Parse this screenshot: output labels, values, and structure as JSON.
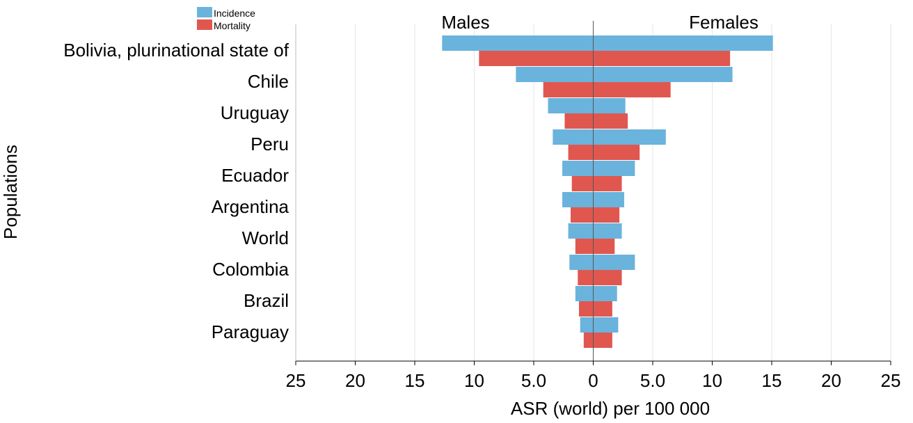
{
  "chart_data": {
    "type": "bar",
    "orientation": "horizontal",
    "layout": "butterfly",
    "title": "",
    "xlabel": "ASR (world) per 100 000",
    "ylabel": "Populations",
    "side_labels": {
      "left": "Males",
      "right": "Females"
    },
    "categories": [
      "Bolivia, plurinational state of",
      "Chile",
      "Uruguay",
      "Peru",
      "Ecuador",
      "Argentina",
      "World",
      "Colombia",
      "Brazil",
      "Paraguay"
    ],
    "series": [
      {
        "name": "Incidence",
        "color": "#6ab3dc",
        "males": [
          12.7,
          6.5,
          3.8,
          3.4,
          2.6,
          2.6,
          2.1,
          2.0,
          1.5,
          1.1
        ],
        "females": [
          15.1,
          11.7,
          2.7,
          6.1,
          3.5,
          2.6,
          2.4,
          3.5,
          2.0,
          2.1
        ]
      },
      {
        "name": "Mortality",
        "color": "#e05750",
        "males": [
          9.6,
          4.2,
          2.4,
          2.1,
          1.8,
          1.9,
          1.5,
          1.3,
          1.2,
          0.8
        ],
        "females": [
          11.5,
          6.5,
          2.9,
          3.9,
          2.4,
          2.2,
          1.8,
          2.4,
          1.6,
          1.6
        ]
      }
    ],
    "xlim": [
      -25,
      25
    ],
    "xticks": [
      -25,
      -20,
      -15,
      -10,
      -5,
      0,
      5,
      10,
      15,
      20,
      25
    ],
    "xtick_labels": [
      "25",
      "20",
      "15",
      "10",
      "5.0",
      "0",
      "5.0",
      "10",
      "15",
      "20",
      "25"
    ],
    "grid": true,
    "legend_position": "top-left"
  }
}
